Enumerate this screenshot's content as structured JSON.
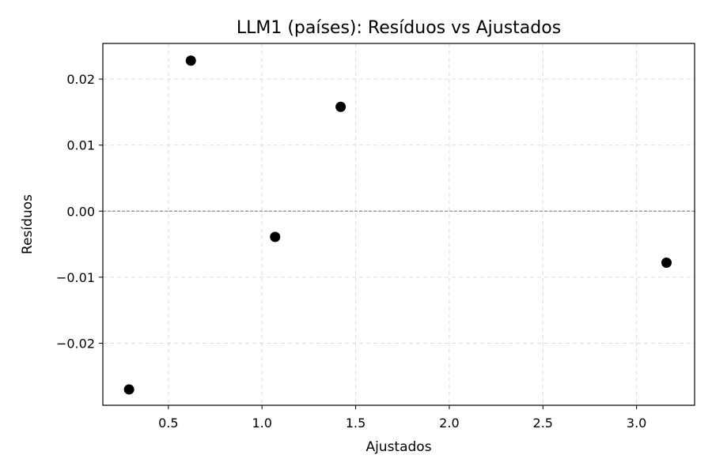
{
  "chart_data": {
    "type": "scatter",
    "title": "LLM1 (países): Resíduos vs Ajustados",
    "xlabel": "Ajustados",
    "ylabel": "Resíduos",
    "xlim": [
      0.15,
      3.31
    ],
    "ylim": [
      -0.0294,
      0.0254
    ],
    "xticks": [
      0.5,
      1.0,
      1.5,
      2.0,
      2.5,
      3.0
    ],
    "xtick_labels": [
      "0.5",
      "1.0",
      "1.5",
      "2.0",
      "2.5",
      "3.0"
    ],
    "yticks": [
      -0.02,
      -0.01,
      0.0,
      0.01,
      0.02
    ],
    "ytick_labels": [
      "−0.02",
      "−0.01",
      "0.00",
      "0.01",
      "0.02"
    ],
    "grid": true,
    "reference_line_y": 0.0,
    "marker_color": "#000000",
    "points": [
      {
        "x": 0.29,
        "y": -0.027
      },
      {
        "x": 0.62,
        "y": 0.0228
      },
      {
        "x": 1.07,
        "y": -0.0039
      },
      {
        "x": 1.42,
        "y": 0.0158
      },
      {
        "x": 3.16,
        "y": -0.0078
      }
    ]
  }
}
